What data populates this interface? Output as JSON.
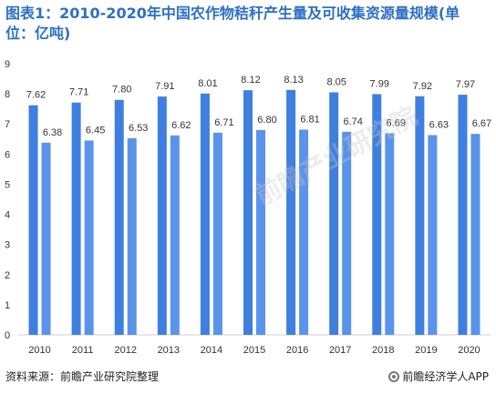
{
  "title": "图表1：2010-2020年中国农作物秸秆产生量及可收集资源量规模(单位：亿吨)",
  "footer": {
    "source": "资料来源：前瞻产业研究院整理",
    "brand": "前瞻经济学人APP"
  },
  "watermark": "前瞻产业研究院",
  "colors": {
    "title": "#2d6fc4",
    "series1": "#3f7fe0",
    "series2": "#5a93ea"
  },
  "chart_data": {
    "type": "bar",
    "categories": [
      "2010",
      "2011",
      "2012",
      "2013",
      "2014",
      "2015",
      "2016",
      "2017",
      "2018",
      "2019",
      "2020"
    ],
    "series": [
      {
        "values": [
          7.62,
          7.71,
          7.8,
          7.91,
          8.01,
          8.12,
          8.13,
          8.05,
          7.99,
          7.92,
          7.97
        ]
      },
      {
        "values": [
          6.38,
          6.45,
          6.53,
          6.62,
          6.71,
          6.8,
          6.81,
          6.74,
          6.69,
          6.63,
          6.67
        ]
      }
    ],
    "value_labels": [
      [
        "7.62",
        "7.71",
        "7.80",
        "7.91",
        "8.01",
        "8.12",
        "8.13",
        "8.05",
        "7.99",
        "7.92",
        "7.97"
      ],
      [
        "6.38",
        "6.45",
        "6.53",
        "6.62",
        "6.71",
        "6.80",
        "6.81",
        "6.74",
        "6.69",
        "6.63",
        "6.67"
      ]
    ],
    "yticks": [
      "0",
      "1",
      "2",
      "3",
      "4",
      "5",
      "6",
      "7",
      "8",
      "9"
    ],
    "ylim": [
      0,
      9
    ],
    "grid": false,
    "legend": "none"
  }
}
